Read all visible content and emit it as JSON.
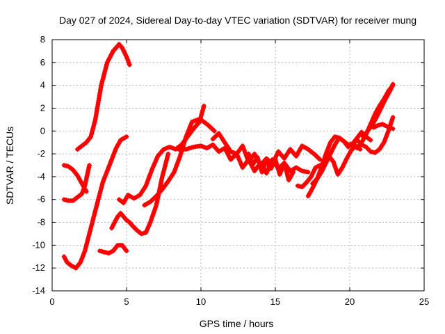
{
  "chart_data": {
    "type": "scatter",
    "title": "Day 027 of 2024, Sidereal Day-to-day VTEC variation (SDTVAR) for receiver mung",
    "xlabel": "GPS time / hours",
    "ylabel": "SDTVAR / TECUs",
    "xlim": [
      0,
      25
    ],
    "ylim": [
      -14,
      8
    ],
    "xticks": [
      0,
      5,
      10,
      15,
      20,
      25
    ],
    "yticks": [
      -14,
      -12,
      -10,
      -8,
      -6,
      -4,
      -2,
      0,
      2,
      4,
      6,
      8
    ],
    "grid": true,
    "marker": "+",
    "color": "#ff0000",
    "series": [
      {
        "x": [
          0.8,
          1.0,
          1.3,
          1.6,
          1.9,
          2.2,
          2.5,
          2.8,
          3.1,
          3.4,
          3.7,
          4.0,
          4.3,
          4.6,
          5.0
        ],
        "y": [
          -11.0,
          -11.5,
          -11.8,
          -12.0,
          -11.5,
          -10.5,
          -9.0,
          -7.5,
          -6.0,
          -4.5,
          -3.5,
          -2.5,
          -1.5,
          -0.8,
          -0.5
        ]
      },
      {
        "x": [
          1.7,
          2.0,
          2.3,
          2.6,
          2.9,
          3.1,
          3.3,
          3.5,
          3.7,
          3.9,
          4.1,
          4.3,
          4.5,
          4.7,
          5.0,
          5.2
        ],
        "y": [
          -1.6,
          -1.3,
          -1.0,
          -0.5,
          1.0,
          2.5,
          4.0,
          5.0,
          6.0,
          6.5,
          7.0,
          7.3,
          7.6,
          7.3,
          6.5,
          5.8
        ]
      },
      {
        "x": [
          0.8,
          1.1,
          1.4,
          1.7,
          2.0,
          2.3
        ],
        "y": [
          -3.0,
          -3.1,
          -3.4,
          -3.9,
          -4.6,
          -5.3
        ]
      },
      {
        "x": [
          0.8,
          1.1,
          1.4,
          1.7,
          2.0,
          2.2,
          2.5
        ],
        "y": [
          -6.0,
          -6.1,
          -6.1,
          -5.8,
          -5.5,
          -4.8,
          -3.0
        ]
      },
      {
        "x": [
          3.2,
          3.5,
          3.8,
          4.1,
          4.4,
          4.7,
          5.0
        ],
        "y": [
          -10.5,
          -10.6,
          -10.7,
          -10.5,
          -10.0,
          -10.0,
          -10.5
        ]
      },
      {
        "x": [
          4.0,
          4.2,
          4.4,
          4.6,
          4.8,
          5.0,
          5.2,
          5.4,
          5.7,
          6.0,
          6.3,
          6.6,
          7.0,
          7.4,
          7.8
        ],
        "y": [
          -8.5,
          -8.0,
          -7.5,
          -7.2,
          -7.5,
          -7.8,
          -8.0,
          -8.3,
          -8.7,
          -9.0,
          -8.9,
          -8.0,
          -6.5,
          -4.0,
          -2.0
        ]
      },
      {
        "x": [
          4.5,
          4.8,
          5.1,
          5.5,
          5.9,
          6.3,
          6.7,
          7.1,
          7.5,
          7.9,
          8.3,
          8.7,
          9.1,
          9.5,
          9.9,
          10.2
        ],
        "y": [
          -6.0,
          -6.3,
          -5.6,
          -5.9,
          -5.6,
          -4.8,
          -3.4,
          -2.2,
          -1.6,
          -1.4,
          -1.6,
          -1.2,
          -0.5,
          0.2,
          0.8,
          2.2
        ]
      },
      {
        "x": [
          6.2,
          6.6,
          7.0,
          7.4,
          7.8,
          8.2,
          8.6,
          9.0,
          9.4,
          9.8,
          10.1,
          10.5,
          10.9
        ],
        "y": [
          -6.5,
          -6.2,
          -5.7,
          -5.1,
          -4.4,
          -3.6,
          -2.2,
          -0.5,
          0.8,
          1.0,
          0.9,
          0.5,
          0.0
        ]
      },
      {
        "x": [
          8.5,
          9.0,
          9.5,
          10.0,
          10.4,
          10.8,
          11.2,
          11.6,
          12.0,
          12.4,
          12.8,
          13.2,
          13.6,
          14.0,
          14.4,
          14.8,
          15.2,
          15.6,
          16.0,
          16.4,
          16.8,
          17.2
        ],
        "y": [
          -1.6,
          -1.6,
          -1.4,
          -1.3,
          -1.5,
          -1.2,
          -1.8,
          -1.5,
          -2.5,
          -2.0,
          -3.2,
          -2.5,
          -3.5,
          -2.8,
          -3.7,
          -2.5,
          -3.3,
          -2.8,
          -3.5,
          -3.2,
          -3.5,
          -3.6
        ]
      },
      {
        "x": [
          10.8,
          11.2,
          11.6,
          12.0,
          12.4,
          12.8,
          13.2,
          13.6,
          14.0,
          14.4,
          14.8,
          15.2,
          15.6,
          16.0,
          16.4,
          16.8,
          17.2,
          17.6,
          18.0
        ],
        "y": [
          -0.7,
          -0.2,
          -1.0,
          -1.8,
          -2.0,
          -1.3,
          -2.7,
          -2.0,
          -3.0,
          -2.4,
          -2.9,
          -1.8,
          -2.4,
          -1.6,
          -2.2,
          -1.3,
          -1.6,
          -2.0,
          -2.5
        ]
      },
      {
        "x": [
          13.2,
          13.5,
          13.8,
          14.1,
          14.4,
          14.7,
          15.0,
          15.3,
          15.6,
          15.9,
          16.2
        ],
        "y": [
          -2.0,
          -2.9,
          -2.3,
          -3.6,
          -2.6,
          -3.3,
          -2.5,
          -3.8,
          -2.8,
          -4.3,
          -3.6
        ]
      },
      {
        "x": [
          17.2,
          17.5,
          17.8,
          18.1,
          18.4,
          18.7,
          19.0,
          19.3,
          19.6,
          19.9,
          20.2,
          20.5,
          20.8,
          21.1,
          21.4
        ],
        "y": [
          -5.7,
          -5.0,
          -4.2,
          -3.2,
          -2.0,
          -1.0,
          -0.5,
          -0.6,
          -0.9,
          -1.2,
          -1.1,
          -0.6,
          -0.1,
          -0.5,
          -0.8
        ]
      },
      {
        "x": [
          16.5,
          16.8,
          17.1,
          17.4,
          17.7,
          18.0,
          18.3,
          18.6,
          18.9,
          19.2,
          19.5,
          19.8,
          20.1,
          20.4,
          20.7
        ],
        "y": [
          -4.8,
          -4.9,
          -4.5,
          -4.0,
          -3.2,
          -3.0,
          -2.8,
          -2.2,
          -2.7,
          -3.8,
          -3.2,
          -2.4,
          -1.7,
          -1.3,
          -1.6
        ]
      },
      {
        "x": [
          17.5,
          17.8,
          18.1,
          18.4,
          18.7,
          19.0,
          19.3,
          19.6,
          19.9,
          20.2,
          20.5,
          20.8,
          21.1,
          21.4,
          21.7,
          22.0,
          22.3,
          22.6,
          22.9
        ],
        "y": [
          -4.6,
          -4.2,
          -3.6,
          -2.8,
          -2.0,
          -1.2,
          -0.6,
          -0.9,
          -1.4,
          -1.1,
          -0.8,
          -1.2,
          -1.4,
          -1.8,
          -1.9,
          -1.6,
          -1.0,
          0.0,
          1.2
        ]
      },
      {
        "x": [
          20.5,
          20.8,
          21.1,
          21.4,
          21.7,
          22.0,
          22.3,
          22.6,
          22.9
        ],
        "y": [
          -1.5,
          -1.0,
          -0.3,
          0.6,
          1.5,
          2.2,
          2.8,
          3.5,
          4.0
        ]
      },
      {
        "x": [
          20.9,
          21.2,
          21.5,
          21.8,
          22.1,
          22.4,
          22.7,
          22.9
        ],
        "y": [
          -0.5,
          0.0,
          0.5,
          1.2,
          2.0,
          2.8,
          3.5,
          4.1
        ]
      },
      {
        "x": [
          21.6,
          21.9,
          22.2,
          22.5,
          22.9
        ],
        "y": [
          0.3,
          0.5,
          0.6,
          0.4,
          0.2
        ]
      }
    ]
  }
}
